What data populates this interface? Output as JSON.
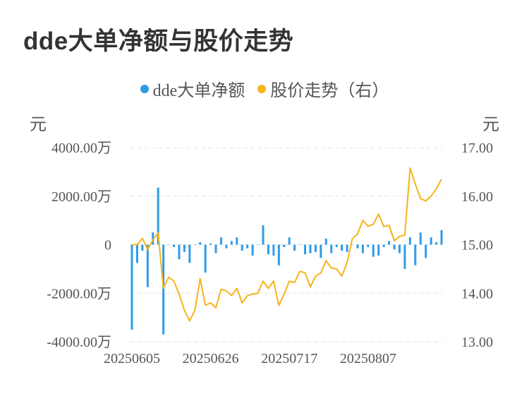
{
  "title": "dde大单净额与股价走势",
  "legend": {
    "series1": "dde大单净额",
    "series2": "股价走势（右）",
    "color1": "#2e9be8",
    "color2": "#f5b41a"
  },
  "units": {
    "left": "元",
    "right": "元"
  },
  "chart_data": {
    "type": "bar+line",
    "x_ticks": [
      "20250605",
      "20250626",
      "20250717",
      "20250807"
    ],
    "left_ticks": [
      "4000.00万",
      "2000.00万",
      "0",
      "-2000.00万",
      "-4000.00万"
    ],
    "right_ticks": [
      "17.00",
      "16.00",
      "15.00",
      "14.00",
      "13.00"
    ],
    "left_ylim": [
      -4000,
      4000
    ],
    "right_ylim": [
      13,
      17
    ],
    "grid": "horizontal dashed",
    "series": [
      {
        "name": "dde大单净额",
        "type": "bar",
        "unit": "万元",
        "values": [
          -3500,
          -750,
          -250,
          -1750,
          500,
          2350,
          -3700,
          0,
          -100,
          -600,
          -300,
          -750,
          0,
          100,
          -1150,
          50,
          -350,
          300,
          -150,
          150,
          300,
          -250,
          -150,
          -450,
          0,
          800,
          -400,
          -450,
          -850,
          -100,
          300,
          -250,
          0,
          -400,
          -350,
          -300,
          -550,
          250,
          -350,
          -100,
          -250,
          -300,
          0,
          -150,
          -350,
          -100,
          -500,
          -450,
          -100,
          150,
          -200,
          -350,
          -1000,
          300,
          -850,
          500,
          -550,
          300,
          100,
          600
        ]
      },
      {
        "name": "股价走势（右）",
        "type": "line",
        "values": [
          15.0,
          15.0,
          15.13,
          14.9,
          15.1,
          15.25,
          14.1,
          14.33,
          14.25,
          13.98,
          13.65,
          13.43,
          13.65,
          14.3,
          13.75,
          13.8,
          13.7,
          14.08,
          14.05,
          13.95,
          14.1,
          13.8,
          13.95,
          13.98,
          14.0,
          14.25,
          14.1,
          14.25,
          13.75,
          13.98,
          14.25,
          14.22,
          14.45,
          14.42,
          14.13,
          14.35,
          14.42,
          14.67,
          14.52,
          14.5,
          14.35,
          14.63,
          15.12,
          15.22,
          15.5,
          15.38,
          15.42,
          15.63,
          15.37,
          15.4,
          15.08,
          15.17,
          15.2,
          16.58,
          16.25,
          15.95,
          15.9,
          16.0,
          16.15,
          16.35
        ]
      }
    ]
  }
}
